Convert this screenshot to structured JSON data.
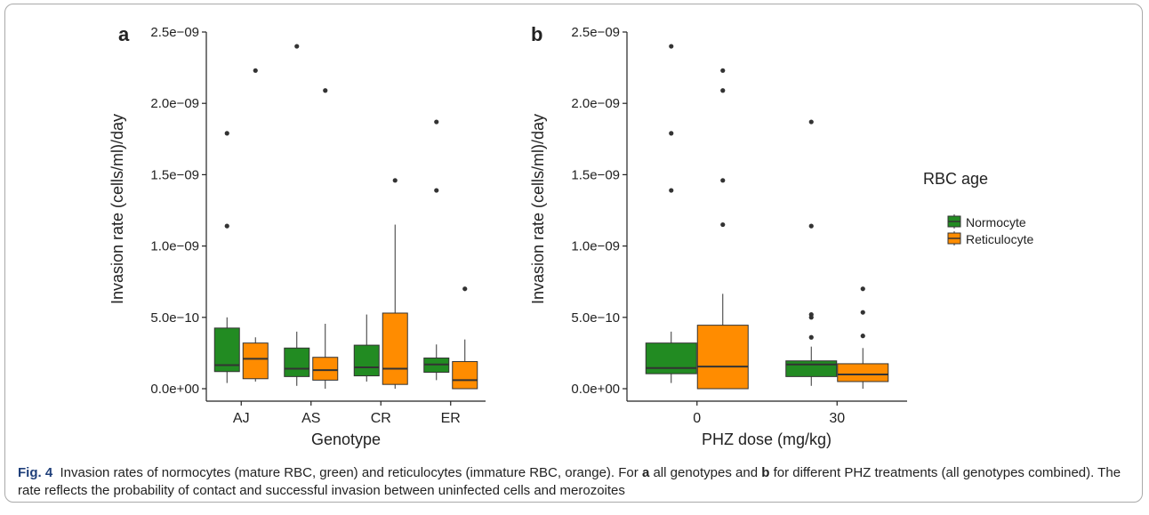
{
  "colors": {
    "normocyte": "#228b22",
    "reticulocyte": "#ff8c00",
    "median": "#333333",
    "whisker": "#333333",
    "outlier": "#333333"
  },
  "legend": {
    "title": "RBC age",
    "items": [
      "Normocyte",
      "Reticulocyte"
    ]
  },
  "caption": {
    "fig_label": "Fig. 4",
    "text_1": "Invasion rates of normocytes (mature RBC, green) and reticulocytes (immature RBC, orange). For",
    "a": "a",
    "text_2": "all genotypes and",
    "b": "b",
    "text_3": "for different PHZ treatments (all genotypes combined). The rate reflects the probability of contact and successful invasion between uninfected cells and merozoites"
  },
  "chart_data": [
    {
      "type": "box",
      "panel_label": "a",
      "xlabel": "Genotype",
      "ylabel": "Invasion rate (cells/ml)/day",
      "ylim": [
        0,
        2.5e-09
      ],
      "yticks": [
        0,
        5e-10,
        1e-09,
        1.5e-09,
        2e-09,
        2.5e-09
      ],
      "ytick_labels": [
        "0.0e+00",
        "5.0e−10",
        "1.0e−09",
        "1.5e−09",
        "2.0e−09",
        "2.5e−09"
      ],
      "categories": [
        "AJ",
        "AS",
        "CR",
        "ER"
      ],
      "series": [
        {
          "name": "Normocyte",
          "boxes": [
            {
              "whisker_low": 4e-11,
              "q1": 1.2e-10,
              "median": 1.65e-10,
              "q3": 4.25e-10,
              "whisker_high": 5e-10,
              "outliers": [
                1.79e-09,
                1.14e-09
              ]
            },
            {
              "whisker_low": 2e-11,
              "q1": 8.5e-11,
              "median": 1.4e-10,
              "q3": 2.85e-10,
              "whisker_high": 4e-10,
              "outliers": [
                2.4e-09
              ]
            },
            {
              "whisker_low": 5e-11,
              "q1": 9e-11,
              "median": 1.5e-10,
              "q3": 3.05e-10,
              "whisker_high": 5.2e-10,
              "outliers": []
            },
            {
              "whisker_low": 6e-11,
              "q1": 1.15e-10,
              "median": 1.7e-10,
              "q3": 2.15e-10,
              "whisker_high": 3.1e-10,
              "outliers": [
                1.87e-09,
                1.39e-09
              ]
            }
          ]
        },
        {
          "name": "Reticulocyte",
          "boxes": [
            {
              "whisker_low": 5e-11,
              "q1": 7e-11,
              "median": 2.1e-10,
              "q3": 3.2e-10,
              "whisker_high": 3.6e-10,
              "outliers": [
                2.23e-09
              ]
            },
            {
              "whisker_low": 0.0,
              "q1": 6e-11,
              "median": 1.3e-10,
              "q3": 2.2e-10,
              "whisker_high": 4.55e-10,
              "outliers": [
                2.09e-09
              ]
            },
            {
              "whisker_low": 0.0,
              "q1": 3e-11,
              "median": 1.4e-10,
              "q3": 5.3e-10,
              "whisker_high": 1.15e-09,
              "outliers": [
                1.46e-09
              ]
            },
            {
              "whisker_low": 0.0,
              "q1": 0.0,
              "median": 6e-11,
              "q3": 1.9e-10,
              "whisker_high": 3.45e-10,
              "outliers": [
                7e-10
              ]
            }
          ]
        }
      ]
    },
    {
      "type": "box",
      "panel_label": "b",
      "xlabel": "PHZ dose (mg/kg)",
      "ylabel": "Invasion rate (cells/ml)/day",
      "ylim": [
        0,
        2.5e-09
      ],
      "yticks": [
        0,
        5e-10,
        1e-09,
        1.5e-09,
        2e-09,
        2.5e-09
      ],
      "ytick_labels": [
        "0.0e+00",
        "5.0e−10",
        "1.0e−09",
        "1.5e−09",
        "2.0e−09",
        "2.5e−09"
      ],
      "categories": [
        "0",
        "30"
      ],
      "series": [
        {
          "name": "Normocyte",
          "boxes": [
            {
              "whisker_low": 4e-11,
              "q1": 1.05e-10,
              "median": 1.45e-10,
              "q3": 3.2e-10,
              "whisker_high": 4e-10,
              "outliers": [
                2.4e-09,
                1.79e-09,
                1.39e-09
              ]
            },
            {
              "whisker_low": 2e-11,
              "q1": 8.5e-11,
              "median": 1.7e-10,
              "q3": 1.95e-10,
              "whisker_high": 2.95e-10,
              "outliers": [
                1.87e-09,
                1.14e-09,
                5.2e-10,
                5e-10,
                3.6e-10
              ]
            }
          ]
        },
        {
          "name": "Reticulocyte",
          "boxes": [
            {
              "whisker_low": 0.0,
              "q1": 0.0,
              "median": 1.55e-10,
              "q3": 4.45e-10,
              "whisker_high": 6.65e-10,
              "outliers": [
                2.23e-09,
                2.09e-09,
                1.46e-09,
                1.15e-09
              ]
            },
            {
              "whisker_low": 0.0,
              "q1": 5e-11,
              "median": 1e-10,
              "q3": 1.75e-10,
              "whisker_high": 2.85e-10,
              "outliers": [
                7e-10,
                5.35e-10,
                3.7e-10
              ]
            }
          ]
        }
      ]
    }
  ]
}
